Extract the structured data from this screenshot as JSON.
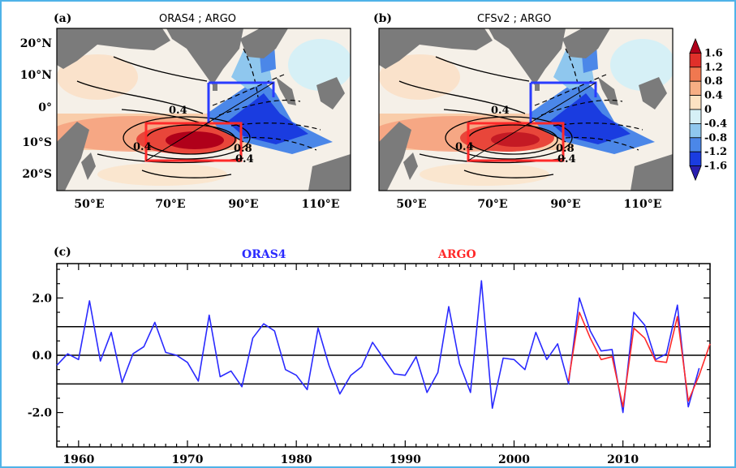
{
  "panel_a": {
    "label": "(a)",
    "title": "ORAS4 ; ARGO",
    "lat_labels": [
      "20°N",
      "10°N",
      "0°",
      "10°S",
      "20°S"
    ],
    "lon_labels": [
      "50°E",
      "70°E",
      "90°E",
      "110°E"
    ],
    "contour_labels": [
      "0.4",
      "0.4",
      "0.8",
      "0.4"
    ]
  },
  "panel_b": {
    "label": "(b)",
    "title": "CFSv2 ; ARGO",
    "lat_labels": [],
    "lon_labels": [
      "50°E",
      "70°E",
      "90°E",
      "110°E"
    ],
    "contour_labels": [
      "0.4",
      "0.4",
      "0.8",
      "0.4"
    ]
  },
  "colorbar": {
    "labels": [
      "1.6",
      "1.2",
      "0.8",
      "0.4",
      "0",
      "-0.4",
      "-0.8",
      "-1.2",
      "-1.6"
    ],
    "colors": [
      "#b0001a",
      "#e0302a",
      "#f07850",
      "#f7ae84",
      "#fde2c2",
      "#d6f0f6",
      "#8fc7ee",
      "#4b87e8",
      "#1a3ce0",
      "#2a1fb0"
    ]
  },
  "colors": {
    "land": "#7b7b7b",
    "box_west": "#ff2a2a",
    "box_east": "#2a3cff",
    "oras4": "#2a2aff",
    "argo": "#ff2a2a",
    "frame": "#4fb3e8"
  },
  "chart_data": {
    "type": "line",
    "panel_label": "(c)",
    "title": "",
    "xlabel": "",
    "ylabel": "",
    "xlim": [
      1958,
      2018
    ],
    "ylim": [
      -3.2,
      3.2
    ],
    "x_ticks": [
      1960,
      1970,
      1980,
      1990,
      2000,
      2010
    ],
    "y_ticks": [
      2.0,
      0.0,
      -2.0
    ],
    "y_tick_labels": [
      "2.0",
      "0.0",
      "-2.0"
    ],
    "reference_lines": [
      1,
      0,
      -1
    ],
    "series": [
      {
        "name": "ORAS4",
        "color": "#2a2aff",
        "x": [
          1958,
          1959,
          1960,
          1961,
          1962,
          1963,
          1964,
          1965,
          1966,
          1967,
          1968,
          1969,
          1970,
          1971,
          1972,
          1973,
          1974,
          1975,
          1976,
          1977,
          1978,
          1979,
          1980,
          1981,
          1982,
          1983,
          1984,
          1985,
          1986,
          1987,
          1988,
          1989,
          1990,
          1991,
          1992,
          1993,
          1994,
          1995,
          1996,
          1997,
          1998,
          1999,
          2000,
          2001,
          2002,
          2003,
          2004,
          2005,
          2006,
          2007,
          2008,
          2009,
          2010,
          2011,
          2012,
          2013,
          2014,
          2015,
          2016,
          2017
        ],
        "y": [
          -0.35,
          0.05,
          -0.15,
          1.9,
          -0.2,
          0.8,
          -0.95,
          0.05,
          0.3,
          1.15,
          0.1,
          0.0,
          -0.25,
          -0.9,
          1.4,
          -0.75,
          -0.55,
          -1.1,
          0.6,
          1.1,
          0.85,
          -0.5,
          -0.7,
          -1.2,
          0.95,
          -0.35,
          -1.35,
          -0.7,
          -0.4,
          0.45,
          -0.1,
          -0.65,
          -0.7,
          -0.05,
          -1.3,
          -0.6,
          1.7,
          -0.3,
          -1.3,
          2.6,
          -1.85,
          -0.1,
          -0.15,
          -0.5,
          0.8,
          -0.15,
          0.4,
          -1.0,
          2.0,
          0.85,
          0.15,
          0.2,
          -2.0,
          1.5,
          1.05,
          -0.15,
          0.05,
          1.75,
          -1.8,
          -0.45
        ]
      },
      {
        "name": "ARGO",
        "color": "#ff2a2a",
        "x": [
          2005,
          2006,
          2007,
          2008,
          2009,
          2010,
          2011,
          2012,
          2013,
          2014,
          2015,
          2016,
          2017,
          2018
        ],
        "y": [
          -0.9,
          1.5,
          0.6,
          -0.15,
          -0.05,
          -1.8,
          0.95,
          0.6,
          -0.2,
          -0.25,
          1.35,
          -1.6,
          -0.7,
          0.4
        ]
      }
    ],
    "legend": [
      "ORAS4",
      "ARGO"
    ],
    "legend_placement": "top-center"
  }
}
